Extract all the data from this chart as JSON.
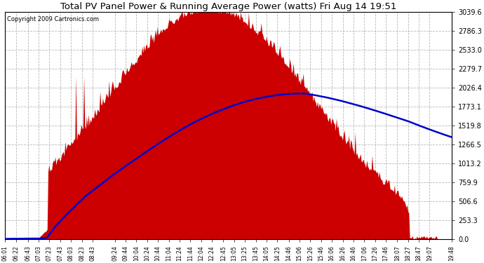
{
  "title": "Total PV Panel Power & Running Average Power (watts) Fri Aug 14 19:51",
  "copyright": "Copyright 2009 Cartronics.com",
  "background_color": "#ffffff",
  "plot_bg_color": "#ffffff",
  "grid_color": "#b0b0b0",
  "fill_color": "#cc0000",
  "line_color": "#0000cc",
  "y_ticks": [
    0.0,
    253.3,
    506.6,
    759.9,
    1013.2,
    1266.5,
    1519.8,
    1773.1,
    2026.4,
    2279.7,
    2533.0,
    2786.3,
    3039.6
  ],
  "y_max": 3039.6,
  "x_labels": [
    "06:01",
    "06:22",
    "06:43",
    "07:03",
    "07:23",
    "07:43",
    "08:03",
    "08:23",
    "08:43",
    "09:24",
    "09:44",
    "10:04",
    "10:24",
    "10:44",
    "11:04",
    "11:24",
    "11:44",
    "12:04",
    "12:24",
    "12:45",
    "13:05",
    "13:25",
    "13:45",
    "14:05",
    "14:25",
    "14:46",
    "15:06",
    "15:26",
    "15:46",
    "16:06",
    "16:26",
    "16:46",
    "17:06",
    "17:26",
    "17:46",
    "18:07",
    "18:27",
    "18:47",
    "19:07",
    "19:48"
  ],
  "figsize": [
    6.9,
    3.75
  ],
  "dpi": 100
}
